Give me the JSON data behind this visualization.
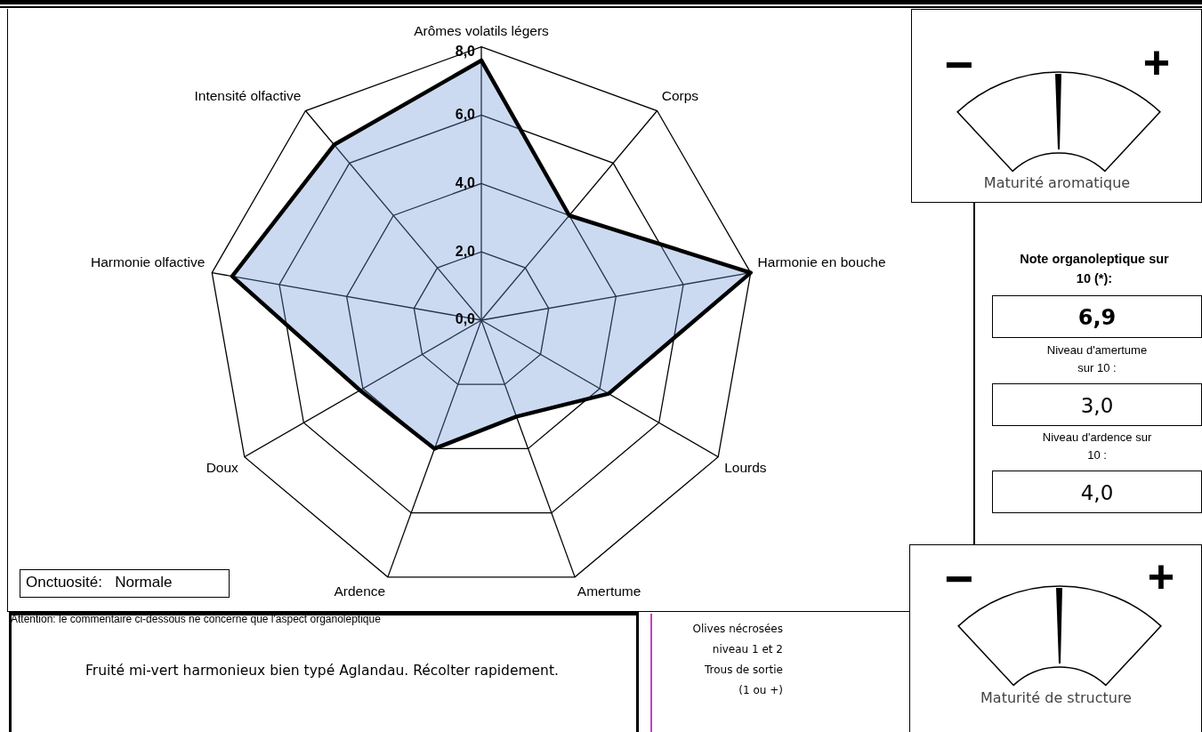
{
  "chart_data": {
    "type": "radar",
    "categories": [
      "Arômes volatils légers",
      "Corps",
      "Harmonie en bouche",
      "Lourds",
      "Amertume",
      "Ardence",
      "Doux",
      "Harmonie olfactive",
      "Intensité olfactive"
    ],
    "series": [
      {
        "color": "#000000",
        "values": [
          7.6,
          4.0,
          8.0,
          4.3,
          3.0,
          4.0,
          4.1,
          7.4,
          6.7
        ]
      }
    ],
    "ylim": [
      0,
      8
    ],
    "yticks": [
      {
        "value": 0,
        "label": "0,0"
      },
      {
        "value": 2,
        "label": "2,0"
      },
      {
        "value": 4,
        "label": "4,0"
      },
      {
        "value": 6,
        "label": "6,0"
      },
      {
        "value": 8,
        "label": "8,0"
      }
    ],
    "grid": true,
    "annotations": [
      "Onctuosité:   Normale",
      "Attention: le commentaire ci-dessous ne concerne que l'aspect organoleptique",
      "Fruité mi-vert harmonieux bien typé Aglandau. Récolter rapidement.",
      "Olives nécrosées niveau 1 et 2",
      "Trous de sortie (1 ou +)",
      "−",
      "+",
      "Maturité aromatique",
      "Note organoleptique sur 10 (*):",
      "6,9",
      "Niveau d'amertume sur 10 :",
      "3,0",
      "Niveau d'ardence sur 10 :",
      "4,0",
      "−",
      "+",
      "Maturité de structure"
    ]
  }
}
